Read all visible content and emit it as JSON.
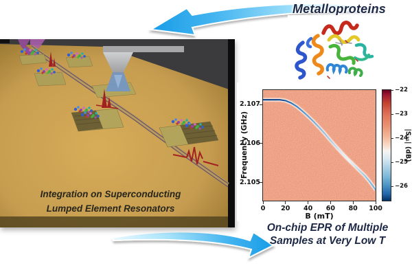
{
  "figure": {
    "top_label": "Metalloproteins",
    "chip_caption_line1": "Integration on Superconducting",
    "chip_caption_line2": "Lumped Element Resonators",
    "bottom_label_line1": "On-chip EPR of Multiple",
    "bottom_label_line2": "Samples at Very Low T",
    "colors": {
      "arrow_blue": "#1ea1e9",
      "chip_gold": "#c69c50",
      "chip_background_gray": "#3b3b3d",
      "heatmap_background": "#e98b69",
      "resonance_dark_blue": "#0b4386",
      "label_text": "#1b2744",
      "pulse_red": "#a32020"
    },
    "icons": {
      "top_arrow": "curved-arrow-pointing-left",
      "bottom_arrow": "curved-arrow-pointing-right",
      "protein": "rainbow-ribbon-protein-structure",
      "chip": "3d-superconducting-chip-with-resonators-and-dispenser-tip"
    }
  },
  "chart_data": {
    "type": "heatmap",
    "title": "",
    "xlabel": "B (mT)",
    "ylabel": "Frequency (GHz)",
    "colorbar_label": "|S₂₁| (dB)",
    "colormap": "RdBu_r",
    "grid": false,
    "xlim": [
      0,
      100
    ],
    "ylim": [
      2.10454,
      2.10737
    ],
    "clim": [
      -26.6,
      -22.0
    ],
    "x_ticks": [
      0,
      20,
      40,
      60,
      80,
      100
    ],
    "y_ticks": [
      2.105,
      2.106,
      2.107
    ],
    "colorbar_ticks": [
      -22,
      -23,
      -24,
      -25,
      -26
    ],
    "background_value_db": -23.2,
    "resonance_curve": {
      "description": "resonator transmission dip position vs magnetic field",
      "B_mT": [
        0,
        5,
        10,
        15,
        20,
        25,
        30,
        35,
        40,
        45,
        50,
        55,
        60,
        65,
        70,
        75,
        80,
        85,
        90,
        95,
        100
      ],
      "f_GHz": [
        2.10712,
        2.10712,
        2.10712,
        2.10712,
        2.1071,
        2.10704,
        2.10695,
        2.10683,
        2.1067,
        2.10656,
        2.10641,
        2.10625,
        2.10608,
        2.10592,
        2.10576,
        2.10561,
        2.10547,
        2.10533,
        2.10519,
        2.10502,
        2.10482
      ]
    }
  }
}
